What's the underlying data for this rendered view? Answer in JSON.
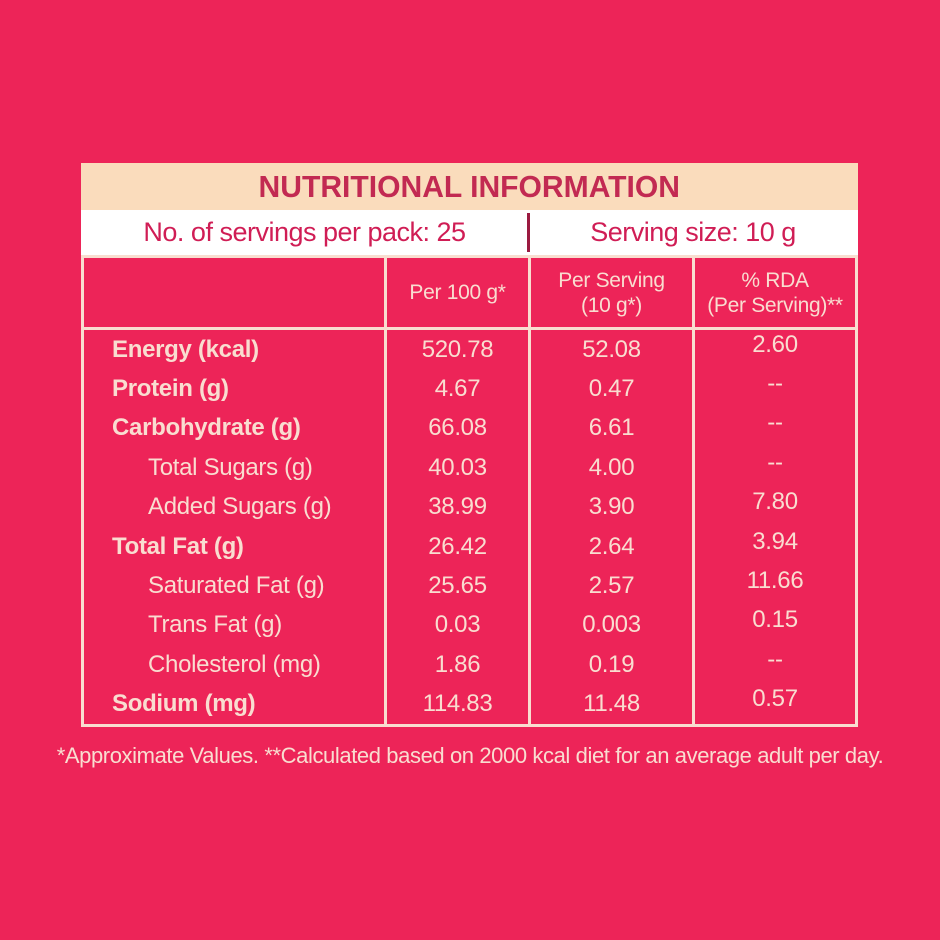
{
  "title": "NUTRITIONAL INFORMATION",
  "servings_row": {
    "left": "No. of servings per pack: 25",
    "right": "Serving size: 10 g"
  },
  "table": {
    "columns": {
      "label": "",
      "per_100g": "Per 100 g*",
      "per_serving_line1": "Per Serving",
      "per_serving_line2": "(10 g*)",
      "rda_line1": "% RDA",
      "rda_line2": "(Per Serving)**"
    },
    "rows": [
      {
        "label": "Energy (kcal)",
        "bold": true,
        "per_100g": "520.78",
        "per_serving": "52.08",
        "rda": "2.60"
      },
      {
        "label": "Protein (g)",
        "bold": true,
        "per_100g": "4.67",
        "per_serving": "0.47",
        "rda": "--"
      },
      {
        "label": "Carbohydrate (g)",
        "bold": true,
        "per_100g": "66.08",
        "per_serving": "6.61",
        "rda": "--"
      },
      {
        "label": "Total Sugars (g)",
        "bold": false,
        "per_100g": "40.03",
        "per_serving": "4.00",
        "rda": "--"
      },
      {
        "label": "Added Sugars (g)",
        "bold": false,
        "per_100g": "38.99",
        "per_serving": "3.90",
        "rda": "7.80"
      },
      {
        "label": "Total Fat (g)",
        "bold": true,
        "per_100g": "26.42",
        "per_serving": "2.64",
        "rda": "3.94"
      },
      {
        "label": "Saturated Fat (g)",
        "bold": false,
        "per_100g": "25.65",
        "per_serving": "2.57",
        "rda": "11.66"
      },
      {
        "label": "Trans Fat (g)",
        "bold": false,
        "per_100g": "0.03",
        "per_serving": "0.003",
        "rda": "0.15"
      },
      {
        "label": "Cholesterol (mg)",
        "bold": false,
        "per_100g": "1.86",
        "per_serving": "0.19",
        "rda": "--"
      },
      {
        "label": "Sodium (mg)",
        "bold": true,
        "per_100g": "114.83",
        "per_serving": "11.48",
        "rda": "0.57"
      }
    ]
  },
  "footnote": "*Approximate Values. **Calculated based on 2000 kcal diet for an average adult per day.",
  "colors": {
    "background": "#ED2458",
    "title_bar_bg": "#FADCBC",
    "title_text": "#C22A52",
    "servings_bg": "#FFFFFF",
    "servings_text": "#D01D55",
    "cream_text": "#F9DDD0",
    "cream_border": "#F9DDD0",
    "servings_divider": "#9B1A40"
  }
}
